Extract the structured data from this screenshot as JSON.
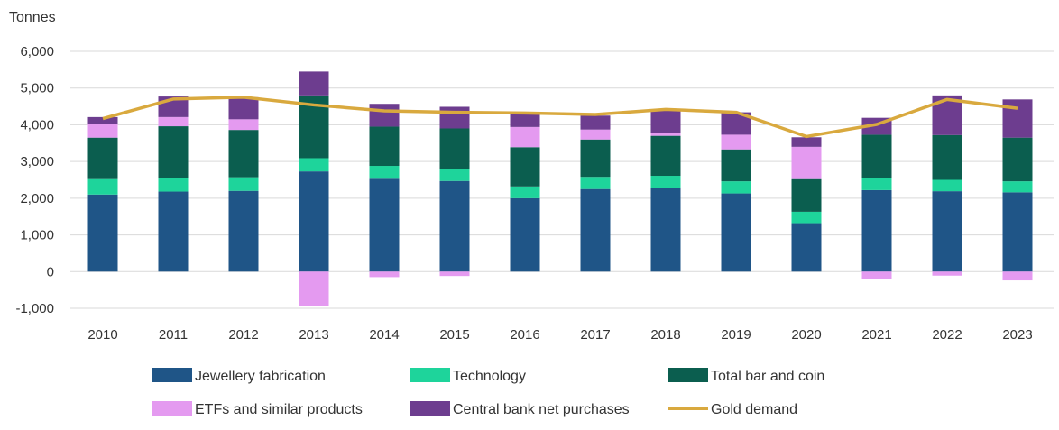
{
  "chart_data": {
    "type": "bar",
    "stacked": true,
    "ylabel": "Tonnes",
    "ylim": [
      -1000,
      6000
    ],
    "yticks": [
      -1000,
      0,
      1000,
      2000,
      3000,
      4000,
      5000,
      6000
    ],
    "ytick_labels": [
      "-1,000",
      "0",
      "1,000",
      "2,000",
      "3,000",
      "4,000",
      "5,000",
      "6,000"
    ],
    "grid": true,
    "legend_position": "bottom",
    "categories": [
      "2010",
      "2011",
      "2012",
      "2013",
      "2014",
      "2015",
      "2016",
      "2017",
      "2018",
      "2019",
      "2020",
      "2021",
      "2022",
      "2023"
    ],
    "series": [
      {
        "name": "Jewellery fabrication",
        "type": "bar",
        "color": "#1f5587",
        "values": [
          2100,
          2180,
          2200,
          2730,
          2530,
          2470,
          2000,
          2250,
          2280,
          2130,
          1320,
          2220,
          2190,
          2160
        ]
      },
      {
        "name": "Technology",
        "type": "bar",
        "color": "#1ed49b",
        "values": [
          420,
          370,
          370,
          360,
          350,
          330,
          320,
          330,
          330,
          330,
          310,
          330,
          310,
          300
        ]
      },
      {
        "name": "Total bar and coin",
        "type": "bar",
        "color": "#0b5e4f",
        "values": [
          1130,
          1410,
          1290,
          1710,
          1070,
          1100,
          1070,
          1020,
          1090,
          870,
          890,
          1180,
          1220,
          1190
        ]
      },
      {
        "name": "ETFs and similar products",
        "type": "bar",
        "color": "#e49af0",
        "values": [
          380,
          250,
          290,
          -930,
          -150,
          -120,
          550,
          270,
          70,
          400,
          880,
          -190,
          -110,
          -240
        ]
      },
      {
        "name": "Central bank net purchases",
        "type": "bar",
        "color": "#6d3d8f",
        "values": [
          180,
          560,
          600,
          650,
          620,
          590,
          380,
          380,
          650,
          610,
          260,
          460,
          1080,
          1040
        ]
      },
      {
        "name": "Gold demand",
        "type": "line",
        "color": "#d9a93e",
        "values": [
          4170,
          4700,
          4750,
          4540,
          4380,
          4340,
          4320,
          4280,
          4420,
          4340,
          3680,
          4010,
          4690,
          4450
        ]
      }
    ]
  }
}
